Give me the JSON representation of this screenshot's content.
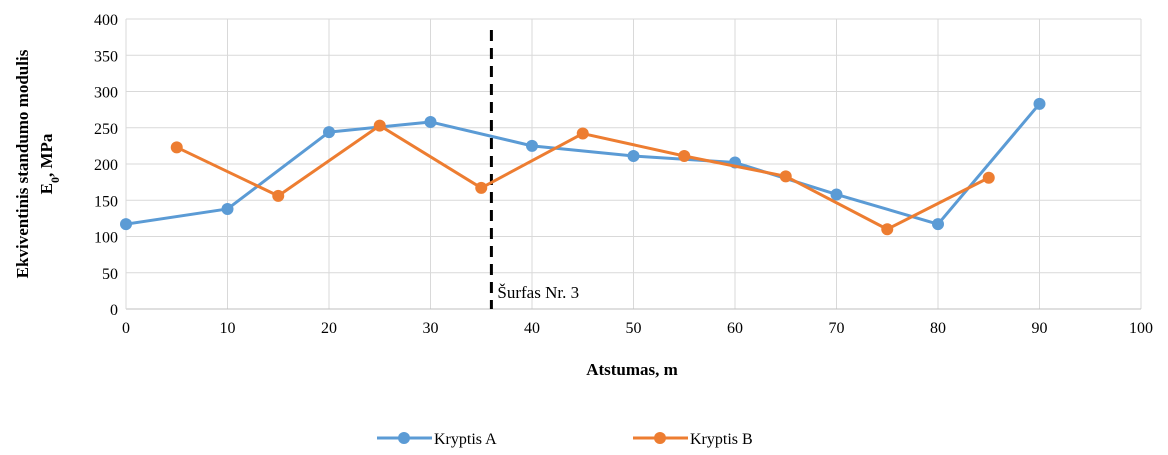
{
  "chart_data": {
    "type": "line",
    "title": "",
    "xlabel": "Atstumas, m",
    "ylabel": [
      "Ekviventinis standumo modulis",
      "E0, MPa"
    ],
    "xlim": [
      0,
      100
    ],
    "ylim": [
      0,
      400
    ],
    "xticks": [
      0,
      10,
      20,
      30,
      40,
      50,
      60,
      70,
      80,
      90,
      100
    ],
    "yticks": [
      0,
      50,
      100,
      150,
      200,
      250,
      300,
      350,
      400
    ],
    "grid": true,
    "legend_position": "bottom",
    "series": [
      {
        "name": "Kryptis A",
        "color": "#5B9BD5",
        "x": [
          0,
          10,
          20,
          30,
          40,
          50,
          60,
          70,
          80,
          90
        ],
        "y": [
          117,
          138,
          244,
          258,
          225,
          211,
          202,
          158,
          117,
          283
        ]
      },
      {
        "name": "Kryptis B",
        "color": "#ED7D31",
        "x": [
          5,
          15,
          25,
          35,
          45,
          55,
          65,
          75,
          85
        ],
        "y": [
          223,
          156,
          253,
          167,
          242,
          211,
          183,
          110,
          181
        ]
      }
    ],
    "annotations": [
      {
        "type": "vertical-dashed-line",
        "x": 36,
        "label": "Šurfas Nr. 3"
      }
    ]
  }
}
